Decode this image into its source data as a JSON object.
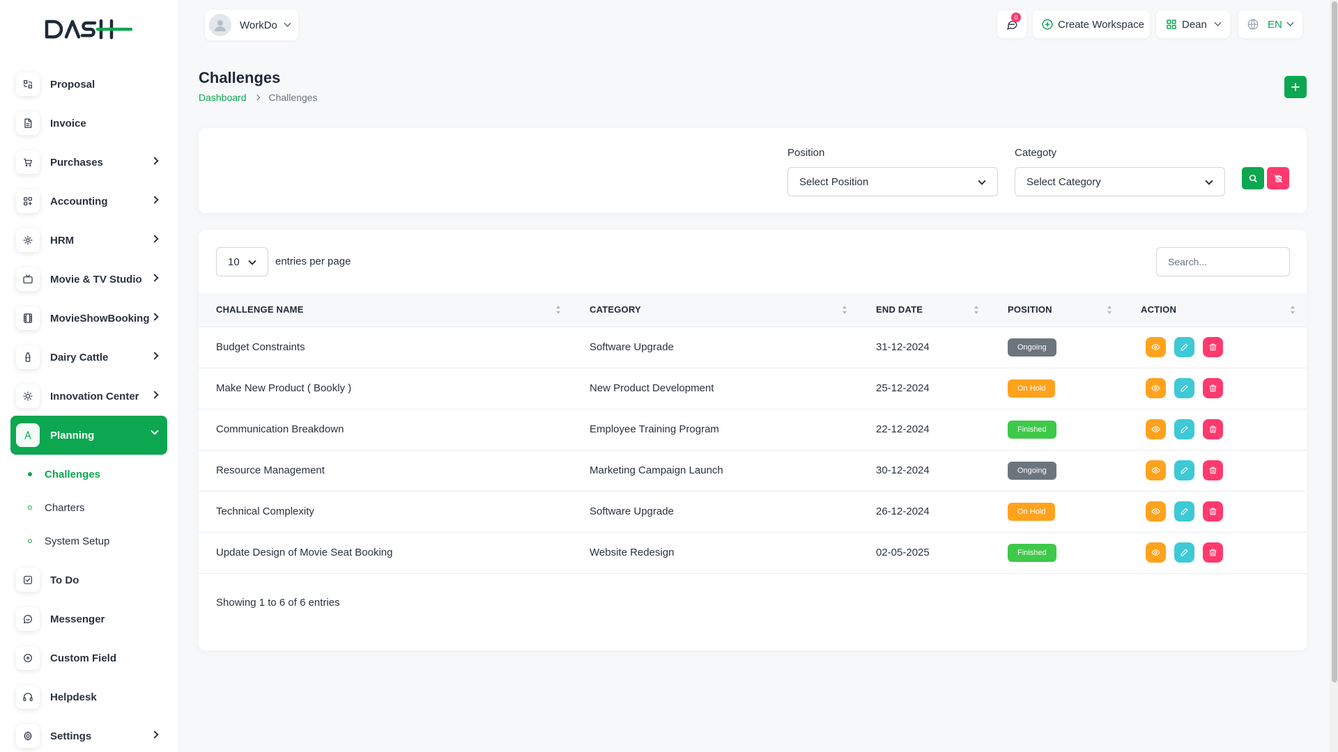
{
  "brand": {
    "logo_text": "DASH",
    "accent": "#0ca750"
  },
  "workspace": {
    "name": "WorkDo"
  },
  "topbar": {
    "notification_count": "0",
    "create_workspace_label": "Create Workspace",
    "user_name": "Dean",
    "language": "EN"
  },
  "sidebar": {
    "items": [
      {
        "label": "Proposal",
        "icon": "proposal-icon",
        "has_children": false
      },
      {
        "label": "Invoice",
        "icon": "invoice-icon",
        "has_children": false
      },
      {
        "label": "Purchases",
        "icon": "cart-icon",
        "has_children": true
      },
      {
        "label": "Accounting",
        "icon": "grid-icon",
        "has_children": true
      },
      {
        "label": "HRM",
        "icon": "hrm-icon",
        "has_children": true
      },
      {
        "label": "Movie & TV Studio",
        "icon": "tv-icon",
        "has_children": true
      },
      {
        "label": "MovieShowBooking",
        "icon": "film-icon",
        "has_children": true
      },
      {
        "label": "Dairy Cattle",
        "icon": "bottle-icon",
        "has_children": true
      },
      {
        "label": "Innovation Center",
        "icon": "bulb-icon",
        "has_children": true
      }
    ],
    "active": {
      "label": "Planning",
      "icon": "planning-icon"
    },
    "submenu": [
      {
        "label": "Challenges",
        "active": true
      },
      {
        "label": "Charters",
        "active": false
      },
      {
        "label": "System Setup",
        "active": false
      }
    ],
    "items_after": [
      {
        "label": "To Do",
        "icon": "checkbox-icon",
        "has_children": false
      },
      {
        "label": "Messenger",
        "icon": "chat-icon",
        "has_children": false
      },
      {
        "label": "Custom Field",
        "icon": "plus-circle-icon",
        "has_children": false
      },
      {
        "label": "Helpdesk",
        "icon": "headset-icon",
        "has_children": false
      },
      {
        "label": "Settings",
        "icon": "gear-icon",
        "has_children": true
      }
    ]
  },
  "page": {
    "title": "Challenges",
    "breadcrumb": {
      "home": "Dashboard",
      "current": "Challenges"
    }
  },
  "filters": {
    "position_label": "Position",
    "position_value": "Select Position",
    "category_label": "Categoty",
    "category_value": "Select Category"
  },
  "table": {
    "entries_value": "10",
    "entries_label": "entries per page",
    "search_placeholder": "Search...",
    "columns": [
      "CHALLENGE NAME",
      "CATEGORY",
      "END DATE",
      "POSITION",
      "ACTION"
    ],
    "rows": [
      {
        "name": "Budget Constraints",
        "category": "Software Upgrade",
        "end_date": "31-12-2024",
        "status": "Ongoing",
        "status_color": "#6c757d"
      },
      {
        "name": "Make New Product ( Bookly )",
        "category": "New Product Development",
        "end_date": "25-12-2024",
        "status": "On Hold",
        "status_color": "#ffa21d"
      },
      {
        "name": "Communication Breakdown",
        "category": "Employee Training Program",
        "end_date": "22-12-2024",
        "status": "Finished",
        "status_color": "#3ec94a"
      },
      {
        "name": "Resource Management",
        "category": "Marketing Campaign Launch",
        "end_date": "30-12-2024",
        "status": "Ongoing",
        "status_color": "#6c757d"
      },
      {
        "name": "Technical Complexity",
        "category": "Software Upgrade",
        "end_date": "26-12-2024",
        "status": "On Hold",
        "status_color": "#ffa21d"
      },
      {
        "name": "Update Design of Movie Seat Booking",
        "category": "Website Redesign",
        "end_date": "02-05-2025",
        "status": "Finished",
        "status_color": "#3ec94a"
      }
    ],
    "footer": "Showing 1 to 6 of 6 entries"
  },
  "colors": {
    "view": "#ffa21d",
    "edit": "#3ec9d6",
    "delete": "#ff3a6e",
    "search": "#0ca750",
    "reset": "#ff3a6e"
  }
}
